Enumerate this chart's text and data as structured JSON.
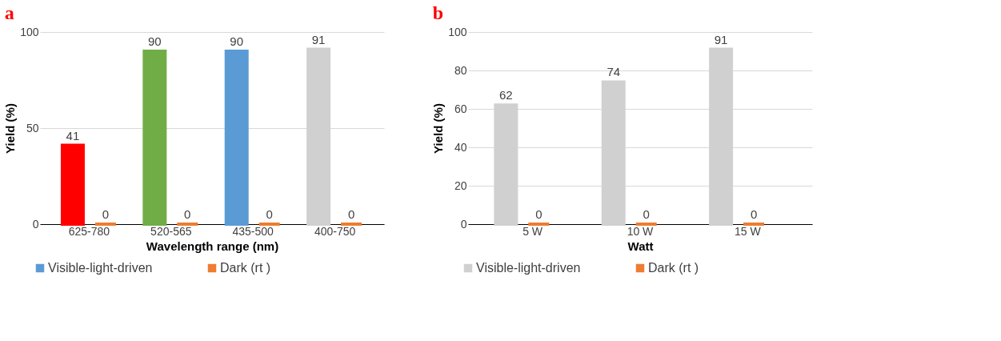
{
  "chart_data": [
    {
      "type": "bar",
      "title": "a",
      "xlabel": "Wavelength range (nm)",
      "ylabel": "Yield (%)",
      "categories": [
        "625-780",
        "520-565",
        "435-500",
        "400-750"
      ],
      "series": [
        {
          "name": "Visible-light-driven",
          "color": "#5b9bd5",
          "colors": [
            "#ff0000",
            "#70ad47",
            "#5b9bd5",
            "#d0d0d0"
          ],
          "values": [
            41,
            90,
            90,
            91
          ]
        },
        {
          "name": "Dark (rt )",
          "color": "#ed7d31",
          "values": [
            0,
            0,
            0,
            0
          ]
        }
      ],
      "ylim": [
        0,
        100
      ],
      "yticks": [
        0,
        50,
        100
      ],
      "grid": "y",
      "legend": "bottom",
      "data_labels": true
    },
    {
      "type": "bar",
      "title": "b",
      "xlabel": "Watt",
      "ylabel": "Yield (%)",
      "categories": [
        "5 W",
        "10 W",
        "15 W"
      ],
      "series": [
        {
          "name": "Visible-light-driven",
          "color": "#d0d0d0",
          "values": [
            62,
            74,
            91
          ]
        },
        {
          "name": "Dark (rt )",
          "color": "#ed7d31",
          "values": [
            0,
            0,
            0
          ]
        }
      ],
      "ylim": [
        0,
        100
      ],
      "yticks": [
        0,
        20,
        40,
        60,
        80,
        100
      ],
      "grid": "y",
      "legend": "bottom",
      "data_labels": true
    }
  ]
}
